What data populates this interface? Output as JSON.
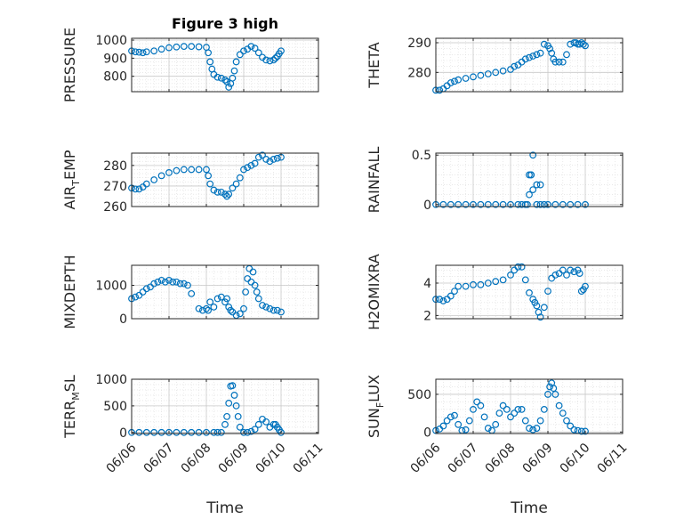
{
  "figure_title": "Figure 3 high",
  "chart_data": [
    {
      "type": "scatter",
      "ylabel": "PRESSURE",
      "yticks": [
        800,
        900,
        1000
      ],
      "ylim": [
        715,
        1010
      ],
      "xlim": [
        0,
        5
      ],
      "xticks": [
        0,
        1,
        2,
        3,
        4,
        5
      ],
      "xticklabels": [
        "06/06",
        "06/07",
        "06/08",
        "06/09",
        "06/10",
        "06/11"
      ],
      "show_xticklabels": false,
      "title": "Figure 3 high",
      "x": [
        0,
        0.1,
        0.2,
        0.3,
        0.4,
        0.6,
        0.8,
        1.0,
        1.2,
        1.4,
        1.6,
        1.8,
        2.0,
        2.05,
        2.1,
        2.15,
        2.2,
        2.3,
        2.4,
        2.5,
        2.55,
        2.6,
        2.65,
        2.7,
        2.75,
        2.8,
        2.9,
        3.0,
        3.1,
        3.2,
        3.3,
        3.4,
        3.5,
        3.6,
        3.7,
        3.8,
        3.85,
        3.9,
        3.95,
        4.0
      ],
      "y": [
        940,
        935,
        933,
        930,
        935,
        940,
        950,
        958,
        962,
        965,
        965,
        963,
        960,
        930,
        880,
        840,
        810,
        795,
        790,
        780,
        770,
        740,
        760,
        790,
        830,
        880,
        920,
        940,
        950,
        965,
        955,
        930,
        905,
        890,
        885,
        890,
        900,
        910,
        925,
        940
      ],
      "color": "#0072BD"
    },
    {
      "type": "scatter",
      "ylabel": "THETA",
      "yticks": [
        280,
        290
      ],
      "ylim": [
        273.5,
        291.5
      ],
      "xlim": [
        0,
        5
      ],
      "show_xticklabels": false,
      "x": [
        0,
        0.1,
        0.2,
        0.3,
        0.4,
        0.5,
        0.6,
        0.8,
        1.0,
        1.2,
        1.4,
        1.6,
        1.8,
        2.0,
        2.1,
        2.2,
        2.3,
        2.4,
        2.5,
        2.6,
        2.7,
        2.8,
        2.9,
        3.0,
        3.05,
        3.1,
        3.15,
        3.2,
        3.3,
        3.4,
        3.5,
        3.6,
        3.7,
        3.75,
        3.8,
        3.85,
        3.9,
        3.95,
        4.0
      ],
      "y": [
        274,
        274,
        274.5,
        275.5,
        276.5,
        277,
        277.5,
        278,
        278.5,
        279,
        279.5,
        280,
        280.5,
        281,
        282,
        282.5,
        283.5,
        284.5,
        285,
        285.5,
        286,
        286.5,
        289.5,
        289,
        288,
        286.5,
        284.5,
        283.5,
        283.5,
        283.5,
        286,
        289.5,
        290,
        290,
        289.5,
        289.5,
        290,
        289.5,
        289
      ],
      "color": "#0072BD"
    },
    {
      "type": "scatter",
      "ylabel_main": "AIR",
      "ylabel_sub": "T",
      "ylabel_rest": "EMP",
      "yticks": [
        260,
        270,
        280
      ],
      "ylim": [
        260,
        286
      ],
      "xlim": [
        0,
        5
      ],
      "show_xticklabels": false,
      "x": [
        0,
        0.1,
        0.2,
        0.3,
        0.4,
        0.6,
        0.8,
        1.0,
        1.2,
        1.4,
        1.6,
        1.8,
        2.0,
        2.05,
        2.1,
        2.2,
        2.3,
        2.4,
        2.5,
        2.55,
        2.6,
        2.7,
        2.8,
        2.9,
        3.0,
        3.1,
        3.2,
        3.3,
        3.4,
        3.5,
        3.6,
        3.7,
        3.8,
        3.9,
        4.0
      ],
      "y": [
        269,
        268.5,
        268.5,
        269.5,
        271,
        273,
        275,
        276.5,
        277.5,
        278,
        278,
        278,
        278,
        275,
        271,
        268,
        267,
        267,
        266,
        265,
        266,
        269,
        271,
        274,
        278,
        279,
        280,
        281,
        284,
        285,
        283,
        282,
        283,
        283.5,
        284
      ],
      "color": "#0072BD"
    },
    {
      "type": "scatter",
      "ylabel": "RAINFALL",
      "yticks": [
        0,
        0.5
      ],
      "ytickformat": "rain",
      "ylim": [
        -0.02,
        0.52
      ],
      "xlim": [
        0,
        5
      ],
      "show_xticklabels": false,
      "x": [
        0,
        0.2,
        0.4,
        0.6,
        0.8,
        1.0,
        1.2,
        1.4,
        1.6,
        1.8,
        2.0,
        2.2,
        2.3,
        2.4,
        2.45,
        2.5,
        2.55,
        2.6,
        2.7,
        2.8,
        2.9,
        3.0,
        3.2,
        3.4,
        3.6,
        3.8,
        4.0,
        2.5,
        2.55,
        2.6,
        2.7,
        2.8
      ],
      "y": [
        0,
        0,
        0,
        0,
        0,
        0,
        0,
        0,
        0,
        0,
        0,
        0,
        0,
        0,
        0,
        0.1,
        0.3,
        0.5,
        0,
        0,
        0,
        0,
        0,
        0,
        0,
        0,
        0,
        0.3,
        0.3,
        0.15,
        0.2,
        0.2
      ],
      "color": "#0072BD"
    },
    {
      "type": "scatter",
      "ylabel": "MIXDEPTH",
      "yticks": [
        0,
        1000
      ],
      "ylim": [
        0,
        1600
      ],
      "xlim": [
        0,
        5
      ],
      "show_xticklabels": false,
      "x": [
        0,
        0.1,
        0.2,
        0.3,
        0.4,
        0.5,
        0.6,
        0.7,
        0.8,
        0.9,
        1.0,
        1.1,
        1.2,
        1.3,
        1.4,
        1.5,
        1.6,
        1.8,
        1.9,
        2.0,
        2.05,
        2.1,
        2.2,
        2.3,
        2.4,
        2.5,
        2.55,
        2.6,
        2.65,
        2.7,
        2.8,
        2.9,
        3.0,
        3.05,
        3.1,
        3.15,
        3.2,
        3.25,
        3.3,
        3.35,
        3.4,
        3.5,
        3.6,
        3.7,
        3.8,
        3.9,
        4.0
      ],
      "y": [
        600,
        650,
        700,
        800,
        900,
        950,
        1050,
        1100,
        1150,
        1100,
        1150,
        1100,
        1100,
        1050,
        1050,
        1000,
        750,
        300,
        250,
        300,
        250,
        500,
        350,
        600,
        650,
        500,
        600,
        350,
        250,
        200,
        100,
        150,
        300,
        800,
        1200,
        1500,
        1100,
        1400,
        1000,
        800,
        600,
        400,
        350,
        300,
        250,
        250,
        200
      ],
      "color": "#0072BD"
    },
    {
      "type": "scatter",
      "ylabel": "H2OMIXRA",
      "yticks": [
        2,
        4
      ],
      "ylim": [
        1.8,
        5.1
      ],
      "xlim": [
        0,
        5
      ],
      "show_xticklabels": false,
      "x": [
        0,
        0.1,
        0.2,
        0.3,
        0.4,
        0.5,
        0.6,
        0.8,
        1.0,
        1.2,
        1.4,
        1.6,
        1.8,
        2.0,
        2.1,
        2.2,
        2.3,
        2.4,
        2.5,
        2.6,
        2.65,
        2.7,
        2.75,
        2.8,
        2.9,
        3.0,
        3.1,
        3.2,
        3.3,
        3.4,
        3.5,
        3.6,
        3.7,
        3.8,
        3.85,
        3.9,
        3.95,
        4.0
      ],
      "y": [
        3,
        3,
        2.9,
        3,
        3.2,
        3.5,
        3.8,
        3.8,
        3.9,
        3.9,
        4,
        4.1,
        4.2,
        4.5,
        4.8,
        5,
        5,
        4.2,
        3.4,
        3,
        2.8,
        2.6,
        2.2,
        1.9,
        2.5,
        3.5,
        4.3,
        4.5,
        4.6,
        4.8,
        4.5,
        4.8,
        4.7,
        4.8,
        4.6,
        3.5,
        3.6,
        3.8
      ],
      "color": "#0072BD"
    },
    {
      "type": "scatter",
      "ylabel_main": "TERR",
      "ylabel_sub": "M",
      "ylabel_rest": "SL",
      "yticks": [
        0,
        500,
        1000
      ],
      "ylim": [
        -20,
        1000
      ],
      "xlim": [
        0,
        5
      ],
      "xticks": [
        0,
        1,
        2,
        3,
        4,
        5
      ],
      "xticklabels": [
        "06/06",
        "06/07",
        "06/08",
        "06/09",
        "06/10",
        "06/11"
      ],
      "show_xticklabels": true,
      "xlabel": "Time",
      "x": [
        0,
        0.2,
        0.4,
        0.6,
        0.8,
        1.0,
        1.2,
        1.4,
        1.6,
        1.8,
        2.0,
        2.2,
        2.3,
        2.4,
        2.5,
        2.55,
        2.6,
        2.65,
        2.7,
        2.75,
        2.8,
        2.85,
        2.9,
        3.0,
        3.1,
        3.2,
        3.3,
        3.4,
        3.5,
        3.6,
        3.7,
        3.8,
        3.85,
        3.9,
        3.95,
        4.0
      ],
      "y": [
        0,
        0,
        0,
        0,
        0,
        0,
        0,
        0,
        0,
        0,
        0,
        0,
        0,
        0,
        150,
        300,
        550,
        870,
        880,
        700,
        500,
        300,
        100,
        0,
        0,
        20,
        60,
        150,
        250,
        200,
        100,
        150,
        150,
        100,
        50,
        0
      ],
      "color": "#0072BD"
    },
    {
      "type": "scatter",
      "ylabel_main": "SUN",
      "ylabel_sub": "F",
      "ylabel_rest": "LUX",
      "yticks": [
        0,
        500
      ],
      "ylim": [
        -20,
        700
      ],
      "xlim": [
        0,
        5
      ],
      "xticks": [
        0,
        1,
        2,
        3,
        4,
        5
      ],
      "xticklabels": [
        "06/06",
        "06/07",
        "06/08",
        "06/09",
        "06/10",
        "06/11"
      ],
      "show_xticklabels": true,
      "xlabel": "Time",
      "x": [
        0,
        0.1,
        0.2,
        0.3,
        0.4,
        0.5,
        0.6,
        0.7,
        0.8,
        0.9,
        1.0,
        1.1,
        1.2,
        1.3,
        1.4,
        1.5,
        1.6,
        1.7,
        1.8,
        1.9,
        2.0,
        2.1,
        2.2,
        2.3,
        2.4,
        2.5,
        2.6,
        2.7,
        2.8,
        2.9,
        3.0,
        3.05,
        3.1,
        3.15,
        3.2,
        3.3,
        3.4,
        3.5,
        3.6,
        3.7,
        3.8,
        3.9,
        4.0
      ],
      "y": [
        20,
        40,
        80,
        150,
        200,
        220,
        100,
        20,
        30,
        150,
        300,
        400,
        350,
        200,
        50,
        20,
        100,
        250,
        350,
        300,
        200,
        250,
        300,
        300,
        150,
        50,
        30,
        50,
        150,
        300,
        500,
        600,
        650,
        580,
        500,
        350,
        250,
        150,
        80,
        30,
        20,
        10,
        10
      ],
      "color": "#0072BD"
    }
  ]
}
